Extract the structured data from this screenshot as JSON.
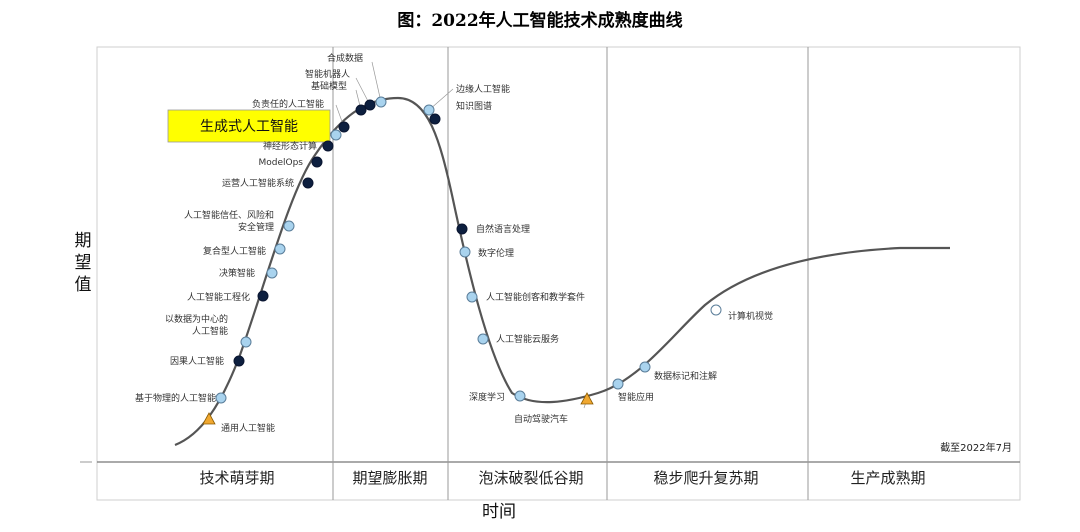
{
  "title": "图：2022年人工智能技术成熟度曲线",
  "chart_data": {
    "type": "line",
    "title": "图：2022年人工智能技术成熟度曲线",
    "xlabel": "时间",
    "ylabel": "期望值",
    "note": "截至2022年7月",
    "phases": [
      "技术萌芽期",
      "期望膨胀期",
      "泡沫破裂低谷期",
      "稳步爬升复苏期",
      "生产成熟期"
    ],
    "highlight": "生成式人工智能",
    "legend_colors": {
      "dark": "#0d1f3f",
      "light": "#a9d3ee",
      "white": "#ffffff",
      "triangle": "#f0a830",
      "curve": "#555555",
      "highlight_bg": "#ffff00"
    },
    "points": [
      {
        "name": "通用人工智能",
        "marker": "triangle"
      },
      {
        "name": "基于物理的人工智能",
        "marker": "light"
      },
      {
        "name": "因果人工智能",
        "marker": "dark"
      },
      {
        "name": "以数据为中心的\n人工智能",
        "marker": "light"
      },
      {
        "name": "人工智能工程化",
        "marker": "dark"
      },
      {
        "name": "决策智能",
        "marker": "light"
      },
      {
        "name": "复合型人工智能",
        "marker": "light"
      },
      {
        "name": "人工智能信任、风险和\n安全管理",
        "marker": "light"
      },
      {
        "name": "运营人工智能系统",
        "marker": "dark"
      },
      {
        "name": "ModelOps",
        "marker": "dark"
      },
      {
        "name": "神经形态计算",
        "marker": "dark"
      },
      {
        "name": "生成式人工智能",
        "marker": "light"
      },
      {
        "name": "负责任的人工智能",
        "marker": "dark"
      },
      {
        "name": "基础模型",
        "marker": "dark"
      },
      {
        "name": "智能机器人",
        "marker": "dark"
      },
      {
        "name": "合成数据",
        "marker": "light"
      },
      {
        "name": "边缘人工智能",
        "marker": "light"
      },
      {
        "name": "知识图谱",
        "marker": "dark"
      },
      {
        "name": "自然语言处理",
        "marker": "dark"
      },
      {
        "name": "数字伦理",
        "marker": "light"
      },
      {
        "name": "人工智能创客和教学套件",
        "marker": "light"
      },
      {
        "name": "人工智能云服务",
        "marker": "light"
      },
      {
        "name": "深度学习",
        "marker": "light"
      },
      {
        "name": "自动驾驶汽车",
        "marker": "triangle"
      },
      {
        "name": "智能应用",
        "marker": "light"
      },
      {
        "name": "数据标记和注解",
        "marker": "light"
      },
      {
        "name": "计算机视觉",
        "marker": "white"
      }
    ]
  }
}
